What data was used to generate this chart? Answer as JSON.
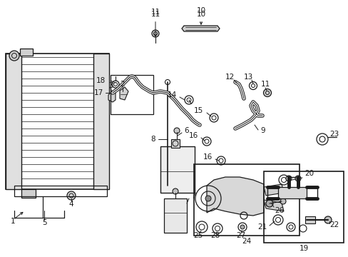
{
  "bg_color": "#ffffff",
  "line_color": "#1a1a1a",
  "fig_w": 4.89,
  "fig_h": 3.6,
  "dpi": 100
}
